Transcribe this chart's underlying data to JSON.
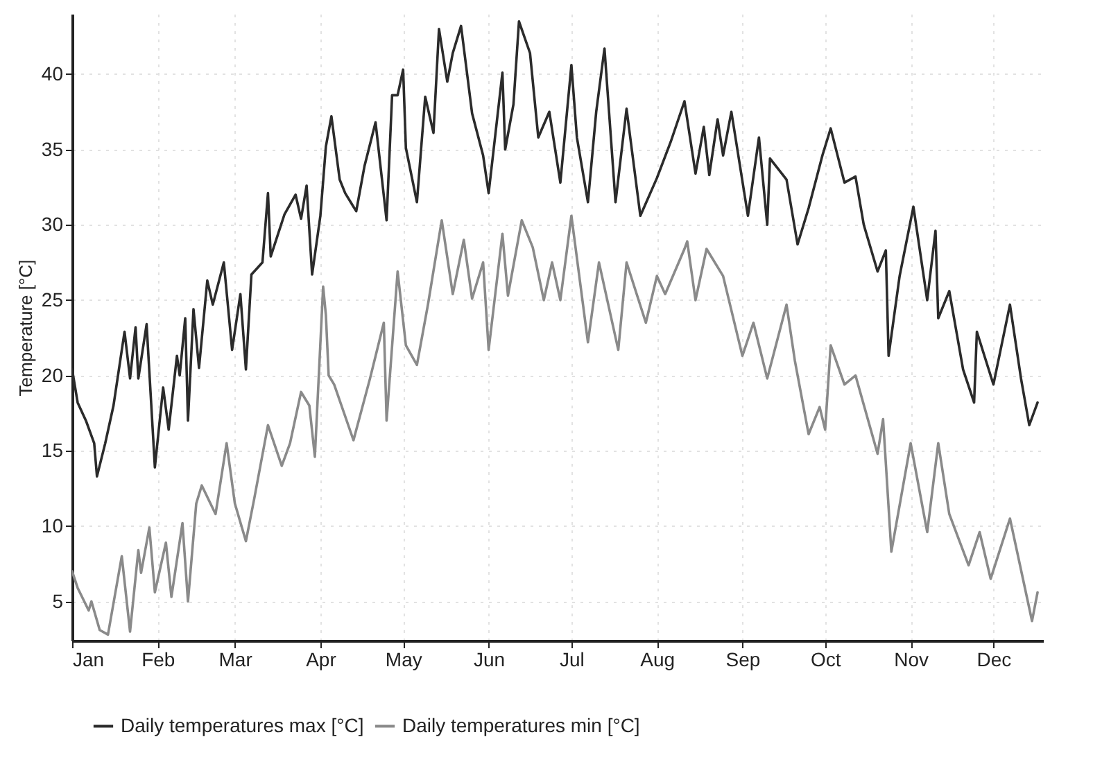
{
  "chart_data": {
    "type": "line",
    "ylabel": "Temperature [°C]",
    "xlim": [
      "--01-01",
      "--12-19"
    ],
    "ylim": [
      2.4,
      44
    ],
    "xticks": [
      {
        "value": "--01-01",
        "label": "Jan"
      },
      {
        "value": "--02-01",
        "label": "Feb"
      },
      {
        "value": "--03-01",
        "label": "Mar"
      },
      {
        "value": "--04-01",
        "label": "Apr"
      },
      {
        "value": "--05-01",
        "label": "May"
      },
      {
        "value": "--06-01",
        "label": "Jun"
      },
      {
        "value": "--07-01",
        "label": "Jul"
      },
      {
        "value": "--08-01",
        "label": "Aug"
      },
      {
        "value": "--09-01",
        "label": "Sep"
      },
      {
        "value": "--10-01",
        "label": "Oct"
      },
      {
        "value": "--11-01",
        "label": "Nov"
      },
      {
        "value": "--12-01",
        "label": "Dec"
      }
    ],
    "yticks": [
      5,
      10,
      15,
      20,
      25,
      30,
      35,
      40
    ],
    "grid": true,
    "legend": "bottom",
    "series": [
      {
        "name": "Daily temperatures max [°C]",
        "color": "#2b2b2b",
        "x": [
          "--01-01",
          "--01-03",
          "--01-06",
          "--01-09",
          "--01-10",
          "--01-13",
          "--01-16",
          "--01-20",
          "--01-22",
          "--01-24",
          "--01-25",
          "--01-28",
          "--01-31",
          "--02-03",
          "--02-05",
          "--02-08",
          "--02-09",
          "--02-11",
          "--02-12",
          "--02-14",
          "--02-16",
          "--02-19",
          "--02-21",
          "--02-25",
          "--02-28",
          "--03-03",
          "--03-05",
          "--03-07",
          "--03-11",
          "--03-13",
          "--03-14",
          "--03-19",
          "--03-23",
          "--03-25",
          "--03-27",
          "--03-29",
          "--04-01",
          "--04-03",
          "--04-05",
          "--04-08",
          "--04-10",
          "--04-14",
          "--04-17",
          "--04-21",
          "--04-25",
          "--04-27",
          "--04-29",
          "--05-01",
          "--05-02",
          "--05-06",
          "--05-09",
          "--05-12",
          "--05-14",
          "--05-17",
          "--05-19",
          "--05-22",
          "--05-26",
          "--05-30",
          "--06-01",
          "--06-06",
          "--06-07",
          "--06-10",
          "--06-12",
          "--06-16",
          "--06-19",
          "--06-23",
          "--06-27",
          "--07-01",
          "--07-03",
          "--07-07",
          "--07-10",
          "--07-13",
          "--07-17",
          "--07-21",
          "--07-26",
          "--08-01",
          "--08-06",
          "--08-11",
          "--08-15",
          "--08-18",
          "--08-20",
          "--08-23",
          "--08-25",
          "--08-28",
          "--09-03",
          "--09-07",
          "--09-10",
          "--09-11",
          "--09-17",
          "--09-21",
          "--09-25",
          "--09-30",
          "--10-03",
          "--10-08",
          "--10-12",
          "--10-15",
          "--10-20",
          "--10-23",
          "--10-24",
          "--10-28",
          "--11-02",
          "--11-07",
          "--11-10",
          "--11-11",
          "--11-15",
          "--11-20",
          "--11-24",
          "--11-25",
          "--12-01",
          "--12-07",
          "--12-11",
          "--12-14",
          "--12-17"
        ],
        "values": [
          20.4,
          18.2,
          17,
          15.5,
          13.3,
          15.5,
          18,
          22.9,
          19.8,
          23.2,
          19.8,
          23.4,
          13.9,
          19.2,
          16.4,
          21.3,
          20,
          23.8,
          17,
          24.4,
          20.5,
          26.3,
          24.7,
          27.5,
          21.7,
          25.4,
          20.4,
          26.7,
          27.5,
          32.1,
          27.9,
          30.7,
          32,
          30.4,
          32.6,
          26.7,
          30.6,
          35.2,
          37.2,
          33,
          32.1,
          30.9,
          33.9,
          36.8,
          30.3,
          38.6,
          38.6,
          40.3,
          35.1,
          31.5,
          38.5,
          36.1,
          43,
          39.5,
          41.4,
          43.2,
          37.4,
          34.6,
          32.1,
          40.1,
          35,
          38,
          43.5,
          41.4,
          35.8,
          37.5,
          32.8,
          40.6,
          35.8,
          31.5,
          37.5,
          41.7,
          31.5,
          37.7,
          30.6,
          33.1,
          35.5,
          38.2,
          33.4,
          36.5,
          33.3,
          37,
          34.6,
          37.5,
          30.6,
          35.8,
          30,
          34.4,
          33,
          28.7,
          31.1,
          34.6,
          36.4,
          32.8,
          33.2,
          30,
          26.9,
          28.3,
          21.3,
          26.6,
          31.2,
          25,
          29.6,
          23.8,
          25.6,
          20.4,
          18.2,
          22.9,
          19.4,
          24.7,
          19.8,
          16.7,
          18.2
        ]
      },
      {
        "name": "Daily temperatures min [°C]",
        "color": "#8a8a8a",
        "x": [
          "--01-01",
          "--01-03",
          "--01-07",
          "--01-08",
          "--01-11",
          "--01-14",
          "--01-19",
          "--01-22",
          "--01-25",
          "--01-26",
          "--01-29",
          "--01-31",
          "--02-04",
          "--02-06",
          "--02-10",
          "--02-12",
          "--02-15",
          "--02-17",
          "--02-22",
          "--02-26",
          "--03-01",
          "--03-05",
          "--03-08",
          "--03-13",
          "--03-18",
          "--03-21",
          "--03-25",
          "--03-28",
          "--03-30",
          "--04-02",
          "--04-03",
          "--04-04",
          "--04-06",
          "--04-13",
          "--04-19",
          "--04-24",
          "--04-25",
          "--04-29",
          "--05-02",
          "--05-06",
          "--05-10",
          "--05-15",
          "--05-19",
          "--05-23",
          "--05-26",
          "--05-30",
          "--06-01",
          "--06-06",
          "--06-08",
          "--06-13",
          "--06-17",
          "--06-21",
          "--06-24",
          "--06-27",
          "--07-01",
          "--07-07",
          "--07-11",
          "--07-18",
          "--07-21",
          "--07-28",
          "--08-01",
          "--08-04",
          "--08-11",
          "--08-12",
          "--08-15",
          "--08-19",
          "--08-25",
          "--09-01",
          "--09-05",
          "--09-10",
          "--09-17",
          "--09-20",
          "--09-25",
          "--09-29",
          "--10-01",
          "--10-03",
          "--10-08",
          "--10-12",
          "--10-20",
          "--10-22",
          "--10-25",
          "--11-01",
          "--11-07",
          "--11-11",
          "--11-15",
          "--11-22",
          "--11-26",
          "--11-30",
          "--12-07",
          "--12-15",
          "--12-17"
        ],
        "values": [
          7,
          5.9,
          4.4,
          5,
          3.1,
          2.8,
          8,
          3,
          8.4,
          6.9,
          9.9,
          5.6,
          8.9,
          5.3,
          10.2,
          5,
          11.5,
          12.7,
          10.8,
          15.5,
          11.5,
          9,
          11.8,
          16.7,
          14,
          15.5,
          18.9,
          18,
          14.6,
          25.9,
          24,
          20,
          19.4,
          15.7,
          19.8,
          23.5,
          17,
          26.9,
          22,
          20.7,
          24.7,
          30.3,
          25.4,
          29,
          25.1,
          27.5,
          21.7,
          29.4,
          25.3,
          30.3,
          28.5,
          25,
          27.5,
          25,
          30.6,
          22.2,
          27.5,
          21.7,
          27.5,
          23.5,
          26.6,
          25.4,
          28.4,
          28.9,
          25,
          28.4,
          26.6,
          21.3,
          23.5,
          19.8,
          24.7,
          21,
          16.1,
          17.9,
          16.4,
          22,
          19.4,
          20,
          14.8,
          17.1,
          8.3,
          15.5,
          9.6,
          15.5,
          10.8,
          7.4,
          9.6,
          6.5,
          10.5,
          3.7,
          5.6
        ]
      }
    ]
  }
}
